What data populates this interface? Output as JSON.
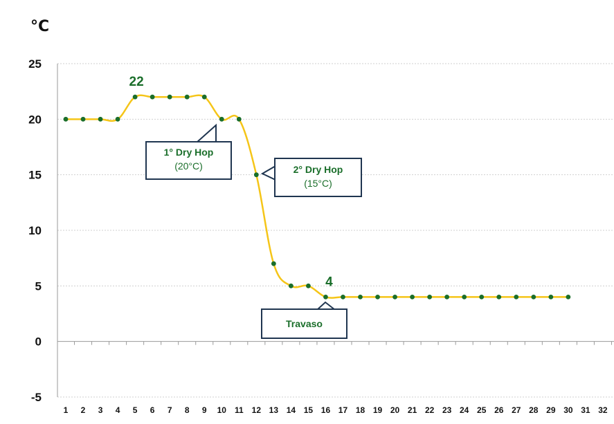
{
  "unit": "°C",
  "chart_data": {
    "type": "line",
    "ylim": [
      -5,
      25
    ],
    "yticks": [
      -5,
      0,
      5,
      10,
      15,
      20,
      25
    ],
    "xticks": [
      1,
      2,
      3,
      4,
      5,
      6,
      7,
      8,
      9,
      10,
      11,
      12,
      13,
      14,
      15,
      16,
      17,
      18,
      19,
      20,
      21,
      22,
      23,
      24,
      25,
      26,
      27,
      28,
      29,
      30,
      31,
      32
    ],
    "grid": true,
    "line_color": "#f5c518",
    "marker_color": "#1a6e2a",
    "series": [
      {
        "x": [
          1,
          2,
          3,
          4,
          5,
          6,
          7,
          8,
          9,
          10,
          11,
          12,
          13,
          14,
          15,
          16,
          17,
          18,
          19,
          20,
          21,
          22,
          23,
          24,
          25,
          26,
          27,
          28,
          29,
          30
        ],
        "values": [
          20,
          20,
          20,
          20,
          22,
          22,
          22,
          22,
          22,
          20,
          20,
          15,
          7,
          5,
          5,
          4,
          4,
          4,
          4,
          4,
          4,
          4,
          4,
          4,
          4,
          4,
          4,
          4,
          4,
          4
        ]
      }
    ],
    "annotations": [
      {
        "x": 5,
        "y": 22,
        "text": "22"
      },
      {
        "x": 16,
        "y": 4,
        "text": "4"
      }
    ]
  },
  "callouts": [
    {
      "title": "1° Dry Hop",
      "sub": "(20°C)"
    },
    {
      "title": "2° Dry Hop",
      "sub": "(15°C)"
    },
    {
      "title": "Travaso",
      "sub": ""
    }
  ]
}
